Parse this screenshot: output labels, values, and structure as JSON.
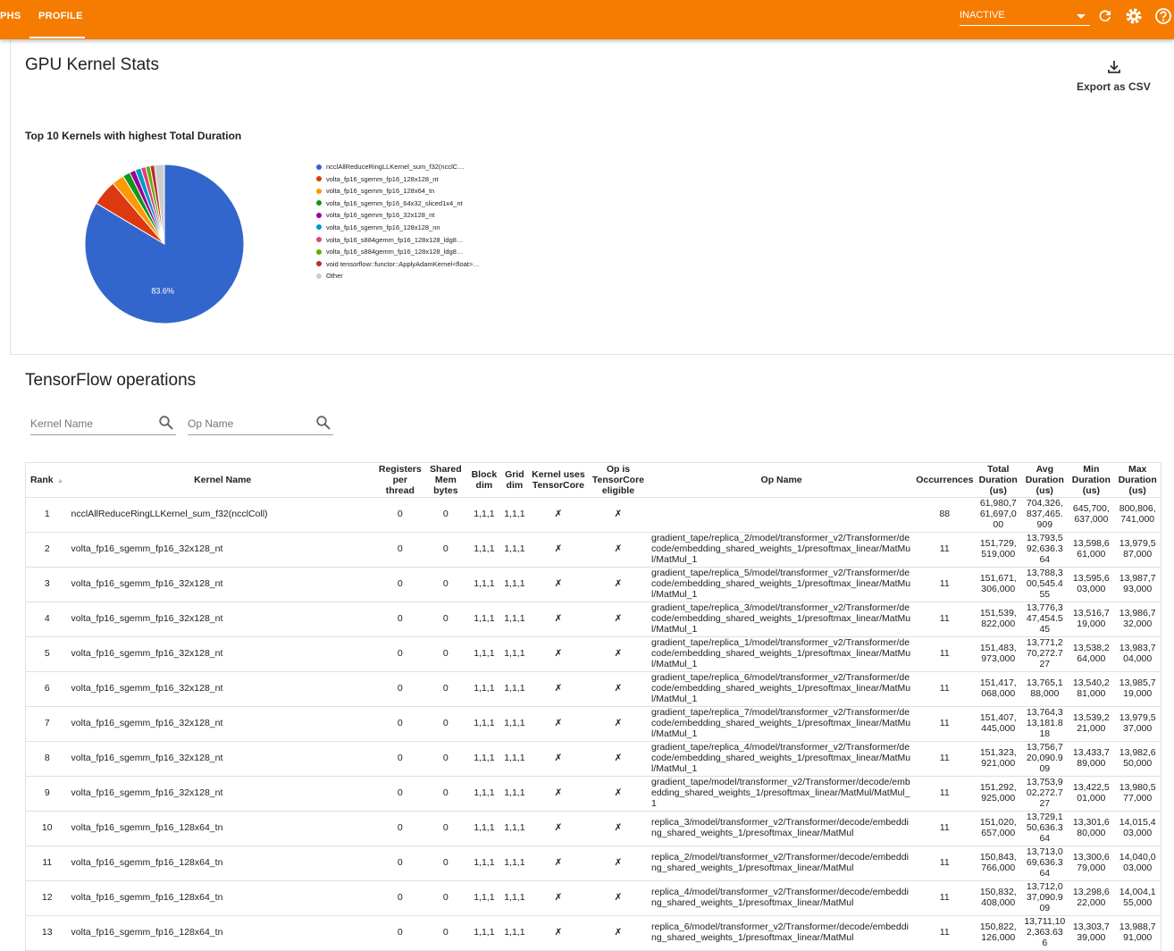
{
  "header": {
    "tabs": [
      "PHS",
      "PROFILE"
    ],
    "status": "INACTIVE"
  },
  "section1": {
    "title": "GPU Kernel Stats",
    "export": "Export as CSV"
  },
  "chart_data": {
    "type": "pie",
    "title": "Top 10 Kernels with highest Total Duration",
    "categories": [
      "ncclAllReduceRingLLKernel_sum_f32(ncclC…",
      "volta_fp16_sgemm_fp16_128x128_nt",
      "volta_fp16_sgemm_fp16_128x64_tn",
      "volta_fp16_sgemm_fp16_64x32_sliced1x4_nt",
      "volta_fp16_sgemm_fp16_32x128_nt",
      "volta_fp16_sgemm_fp16_128x128_nn",
      "volta_fp16_s884gemm_fp16_128x128_ldg8…",
      "volta_fp16_s884gemm_fp16_128x128_ldg8…",
      "void tensorflow::functor::ApplyAdamKernel<float>…",
      "Other"
    ],
    "values": [
      83.6,
      5.2,
      2.5,
      1.5,
      1.2,
      1.2,
      1.0,
      0.9,
      0.9,
      2.0
    ],
    "value_labels": [
      "83.6%",
      null,
      null,
      null,
      null,
      null,
      null,
      null,
      null,
      null
    ],
    "colors": [
      "#3366cc",
      "#dc3912",
      "#ff9900",
      "#109618",
      "#990099",
      "#0099c6",
      "#dd4477",
      "#66aa00",
      "#b82e2e",
      "#cccccc"
    ]
  },
  "section2": {
    "title": "TensorFlow operations",
    "filters": [
      "Kernel Name",
      "Op Name"
    ]
  },
  "table": {
    "headers": [
      "Rank",
      "Kernel Name",
      "Registers per thread",
      "Shared Mem bytes",
      "Block dim",
      "Grid dim",
      "Kernel uses TensorCore",
      "Op is TensorCore eligible",
      "Op Name",
      "Occurrences",
      "Total Duration (us)",
      "Avg Duration (us)",
      "Min Duration (us)",
      "Max Duration (us)"
    ],
    "rows": [
      [
        1,
        "ncclAllReduceRingLLKernel_sum_f32(ncclColl)",
        0,
        0,
        "1,1,1",
        "1,1,1",
        "✗",
        "✗",
        null,
        88,
        "61,980,761,697,000",
        "704,326,837,465.909",
        "645,700,637,000",
        "800,806,741,000"
      ],
      [
        2,
        "volta_fp16_sgemm_fp16_32x128_nt",
        0,
        0,
        "1,1,1",
        "1,1,1",
        "✗",
        "✗",
        "gradient_tape/replica_2/model/transformer_v2/Transformer/decode/embedding_shared_weights_1/presoftmax_linear/MatMul/MatMul_1",
        11,
        "151,729,519,000",
        "13,793,592,636.364",
        "13,598,661,000",
        "13,979,587,000"
      ],
      [
        3,
        "volta_fp16_sgemm_fp16_32x128_nt",
        0,
        0,
        "1,1,1",
        "1,1,1",
        "✗",
        "✗",
        "gradient_tape/replica_5/model/transformer_v2/Transformer/decode/embedding_shared_weights_1/presoftmax_linear/MatMul/MatMul_1",
        11,
        "151,671,306,000",
        "13,788,300,545.455",
        "13,595,603,000",
        "13,987,793,000"
      ],
      [
        4,
        "volta_fp16_sgemm_fp16_32x128_nt",
        0,
        0,
        "1,1,1",
        "1,1,1",
        "✗",
        "✗",
        "gradient_tape/replica_3/model/transformer_v2/Transformer/decode/embedding_shared_weights_1/presoftmax_linear/MatMul/MatMul_1",
        11,
        "151,539,822,000",
        "13,776,347,454.545",
        "13,516,719,000",
        "13,986,732,000"
      ],
      [
        5,
        "volta_fp16_sgemm_fp16_32x128_nt",
        0,
        0,
        "1,1,1",
        "1,1,1",
        "✗",
        "✗",
        "gradient_tape/replica_1/model/transformer_v2/Transformer/decode/embedding_shared_weights_1/presoftmax_linear/MatMul/MatMul_1",
        11,
        "151,483,973,000",
        "13,771,270,272.727",
        "13,538,264,000",
        "13,983,704,000"
      ],
      [
        6,
        "volta_fp16_sgemm_fp16_32x128_nt",
        0,
        0,
        "1,1,1",
        "1,1,1",
        "✗",
        "✗",
        "gradient_tape/replica_6/model/transformer_v2/Transformer/decode/embedding_shared_weights_1/presoftmax_linear/MatMul/MatMul_1",
        11,
        "151,417,068,000",
        "13,765,188,000",
        "13,540,281,000",
        "13,985,719,000"
      ],
      [
        7,
        "volta_fp16_sgemm_fp16_32x128_nt",
        0,
        0,
        "1,1,1",
        "1,1,1",
        "✗",
        "✗",
        "gradient_tape/replica_7/model/transformer_v2/Transformer/decode/embedding_shared_weights_1/presoftmax_linear/MatMul/MatMul_1",
        11,
        "151,407,445,000",
        "13,764,313,181.818",
        "13,539,221,000",
        "13,979,537,000"
      ],
      [
        8,
        "volta_fp16_sgemm_fp16_32x128_nt",
        0,
        0,
        "1,1,1",
        "1,1,1",
        "✗",
        "✗",
        "gradient_tape/replica_4/model/transformer_v2/Transformer/decode/embedding_shared_weights_1/presoftmax_linear/MatMul/MatMul_1",
        11,
        "151,323,921,000",
        "13,756,720,090.909",
        "13,433,789,000",
        "13,982,650,000"
      ],
      [
        9,
        "volta_fp16_sgemm_fp16_32x128_nt",
        0,
        0,
        "1,1,1",
        "1,1,1",
        "✗",
        "✗",
        "gradient_tape/model/transformer_v2/Transformer/decode/embedding_shared_weights_1/presoftmax_linear/MatMul/MatMul_1",
        11,
        "151,292,925,000",
        "13,753,902,272.727",
        "13,422,501,000",
        "13,980,577,000"
      ],
      [
        10,
        "volta_fp16_sgemm_fp16_128x64_tn",
        0,
        0,
        "1,1,1",
        "1,1,1",
        "✗",
        "✗",
        "replica_3/model/transformer_v2/Transformer/decode/embedding_shared_weights_1/presoftmax_linear/MatMul",
        11,
        "151,020,657,000",
        "13,729,150,636.364",
        "13,301,680,000",
        "14,015,403,000"
      ],
      [
        11,
        "volta_fp16_sgemm_fp16_128x64_tn",
        0,
        0,
        "1,1,1",
        "1,1,1",
        "✗",
        "✗",
        "replica_2/model/transformer_v2/Transformer/decode/embedding_shared_weights_1/presoftmax_linear/MatMul",
        11,
        "150,843,766,000",
        "13,713,069,636.364",
        "13,300,679,000",
        "14,040,003,000"
      ],
      [
        12,
        "volta_fp16_sgemm_fp16_128x64_tn",
        0,
        0,
        "1,1,1",
        "1,1,1",
        "✗",
        "✗",
        "replica_4/model/transformer_v2/Transformer/decode/embedding_shared_weights_1/presoftmax_linear/MatMul",
        11,
        "150,832,408,000",
        "13,712,037,090.909",
        "13,298,622,000",
        "14,004,155,000"
      ],
      [
        13,
        "volta_fp16_sgemm_fp16_128x64_tn",
        0,
        0,
        "1,1,1",
        "1,1,1",
        "✗",
        "✗",
        "replica_6/model/transformer_v2/Transformer/decode/embedding_shared_weights_1/presoftmax_linear/MatMul",
        11,
        "150,822,126,000",
        "13,711,102,363.636",
        "13,303,739,000",
        "13,988,791,000"
      ]
    ]
  }
}
